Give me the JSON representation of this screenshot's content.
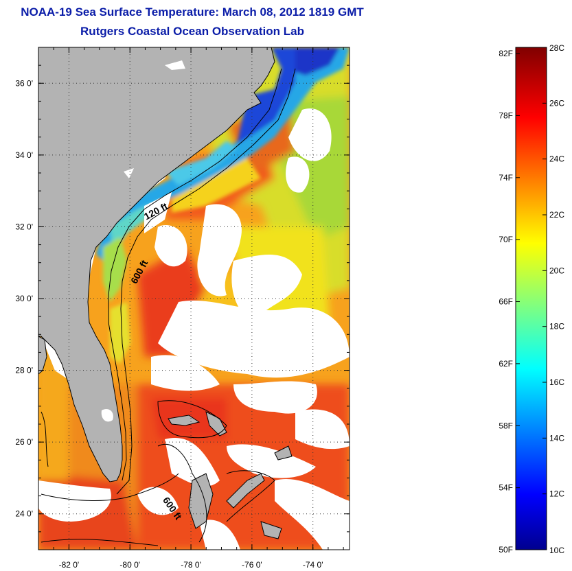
{
  "title": {
    "line1": "NOAA-19 Sea Surface Temperature:  March 08, 2012 1819 GMT",
    "line2": "Rutgers Coastal Ocean Observation Lab"
  },
  "map": {
    "lon_range": [
      -83,
      -72.8
    ],
    "lat_range": [
      23,
      37
    ],
    "x_ticks": [
      -82,
      -80,
      -78,
      -76,
      -74
    ],
    "x_tick_labels": [
      "-82 0'",
      "-80 0'",
      "-78 0'",
      "-76 0'",
      "-74 0'"
    ],
    "y_ticks": [
      24,
      26,
      28,
      30,
      32,
      34,
      36
    ],
    "y_tick_labels": [
      "24 0'",
      "26 0'",
      "28 0'",
      "30 0'",
      "32 0'",
      "34 0'",
      "36 0'"
    ],
    "contour_labels": [
      {
        "text": "120 ft",
        "lon": -79.1,
        "lat": 32.35
      },
      {
        "text": "600 ft",
        "lon": -79.6,
        "lat": 30.7
      },
      {
        "text": "600 ft",
        "lon": -78.7,
        "lat": 24.1
      }
    ],
    "colors": {
      "land": "#b3b3b3",
      "cloud": "#ffffff",
      "grid": "#333333"
    }
  },
  "colorbar": {
    "celsius_ticks": [
      10,
      12,
      14,
      16,
      18,
      20,
      22,
      24,
      26,
      28
    ],
    "celsius_labels": [
      "10C",
      "12C",
      "14C",
      "16C",
      "18C",
      "20C",
      "22C",
      "24C",
      "26C",
      "28C"
    ],
    "fahrenheit_ticks": [
      50,
      54,
      58,
      62,
      66,
      70,
      74,
      78,
      82
    ],
    "fahrenheit_labels": [
      "50F",
      "54F",
      "58F",
      "62F",
      "66F",
      "70F",
      "74F",
      "78F",
      "82F"
    ],
    "range_celsius": [
      10,
      28
    ],
    "colormap": "jet"
  }
}
